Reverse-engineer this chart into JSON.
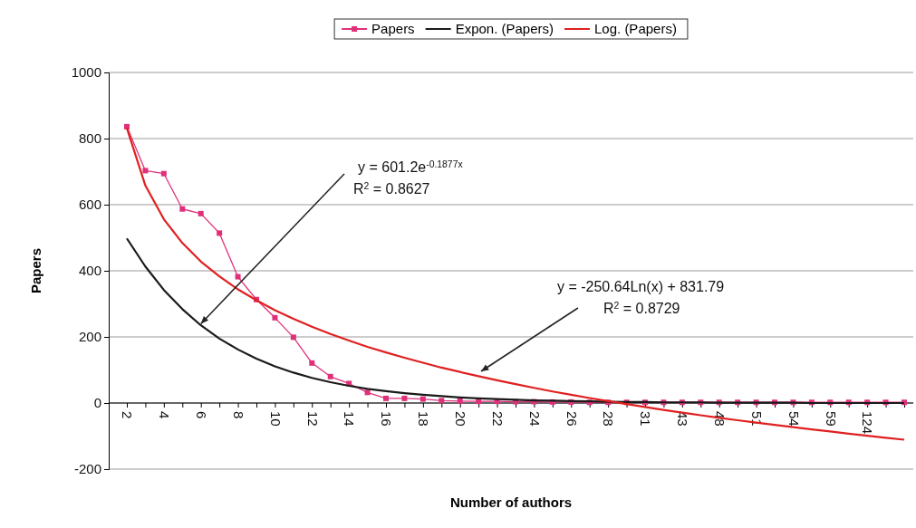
{
  "chart_data": {
    "type": "line",
    "xlabel": "Number of authors",
    "ylabel": "Papers",
    "categories": [
      "2",
      null,
      "4",
      null,
      "6",
      null,
      "8",
      null,
      "10",
      null,
      "12",
      null,
      "14",
      null,
      "16",
      null,
      "18",
      null,
      "20",
      null,
      "22",
      null,
      "24",
      null,
      "26",
      null,
      "28",
      null,
      "31",
      null,
      "43",
      null,
      "48",
      null,
      "51",
      null,
      "54",
      null,
      "59",
      null,
      "124",
      null,
      null
    ],
    "series": [
      {
        "name": "Papers",
        "color": "#e0307a",
        "marker": "square",
        "values": [
          836,
          703,
          694,
          587,
          573,
          514,
          382,
          313,
          258,
          199,
          121,
          80,
          59,
          32,
          14,
          14,
          12,
          7,
          6,
          5,
          5,
          4,
          4,
          3,
          3,
          2,
          2,
          2,
          2,
          2,
          2,
          2,
          2,
          2,
          2,
          2,
          2,
          2,
          2,
          2,
          2,
          2,
          2
        ]
      },
      {
        "name": "Expon. (Papers)",
        "color": "#1a1a1a",
        "marker": "none",
        "values": [
          498,
          413,
          342,
          284,
          235,
          195,
          162,
          134,
          111,
          92,
          76,
          63,
          52,
          43,
          36,
          30,
          25,
          21,
          17,
          14,
          12,
          10,
          8,
          7,
          6,
          5,
          4,
          3,
          3,
          2,
          2,
          2,
          1,
          1,
          1,
          1,
          1,
          0,
          0,
          0,
          0,
          0,
          0
        ]
      },
      {
        "name": "Log. (Papers)",
        "color": "#e02020",
        "marker": "none",
        "values": [
          832,
          658,
          556,
          484,
          428,
          383,
          344,
          311,
          281,
          255,
          231,
          209,
          189,
          170,
          153,
          137,
          122,
          107,
          94,
          81,
          69,
          57,
          46,
          35,
          25,
          15,
          6,
          -3,
          -12,
          -21,
          -29,
          -37,
          -45,
          -52,
          -59,
          -66,
          -73,
          -80,
          -86,
          -93,
          -99,
          -105,
          -111
        ]
      }
    ],
    "ylim": [
      -200,
      1000
    ],
    "yticks": [
      -200,
      0,
      200,
      400,
      600,
      800,
      1000
    ],
    "grid": "y",
    "legend": "top",
    "annotations": [
      {
        "text": "y = 601.2e$^{-0.1877x}$",
        "x": "6",
        "y": 240
      },
      "R$^{2}$ = 0.8627",
      "y = -250.64Ln(x) + 831.79",
      "R$^{2}$ = 0.8729"
    ]
  }
}
